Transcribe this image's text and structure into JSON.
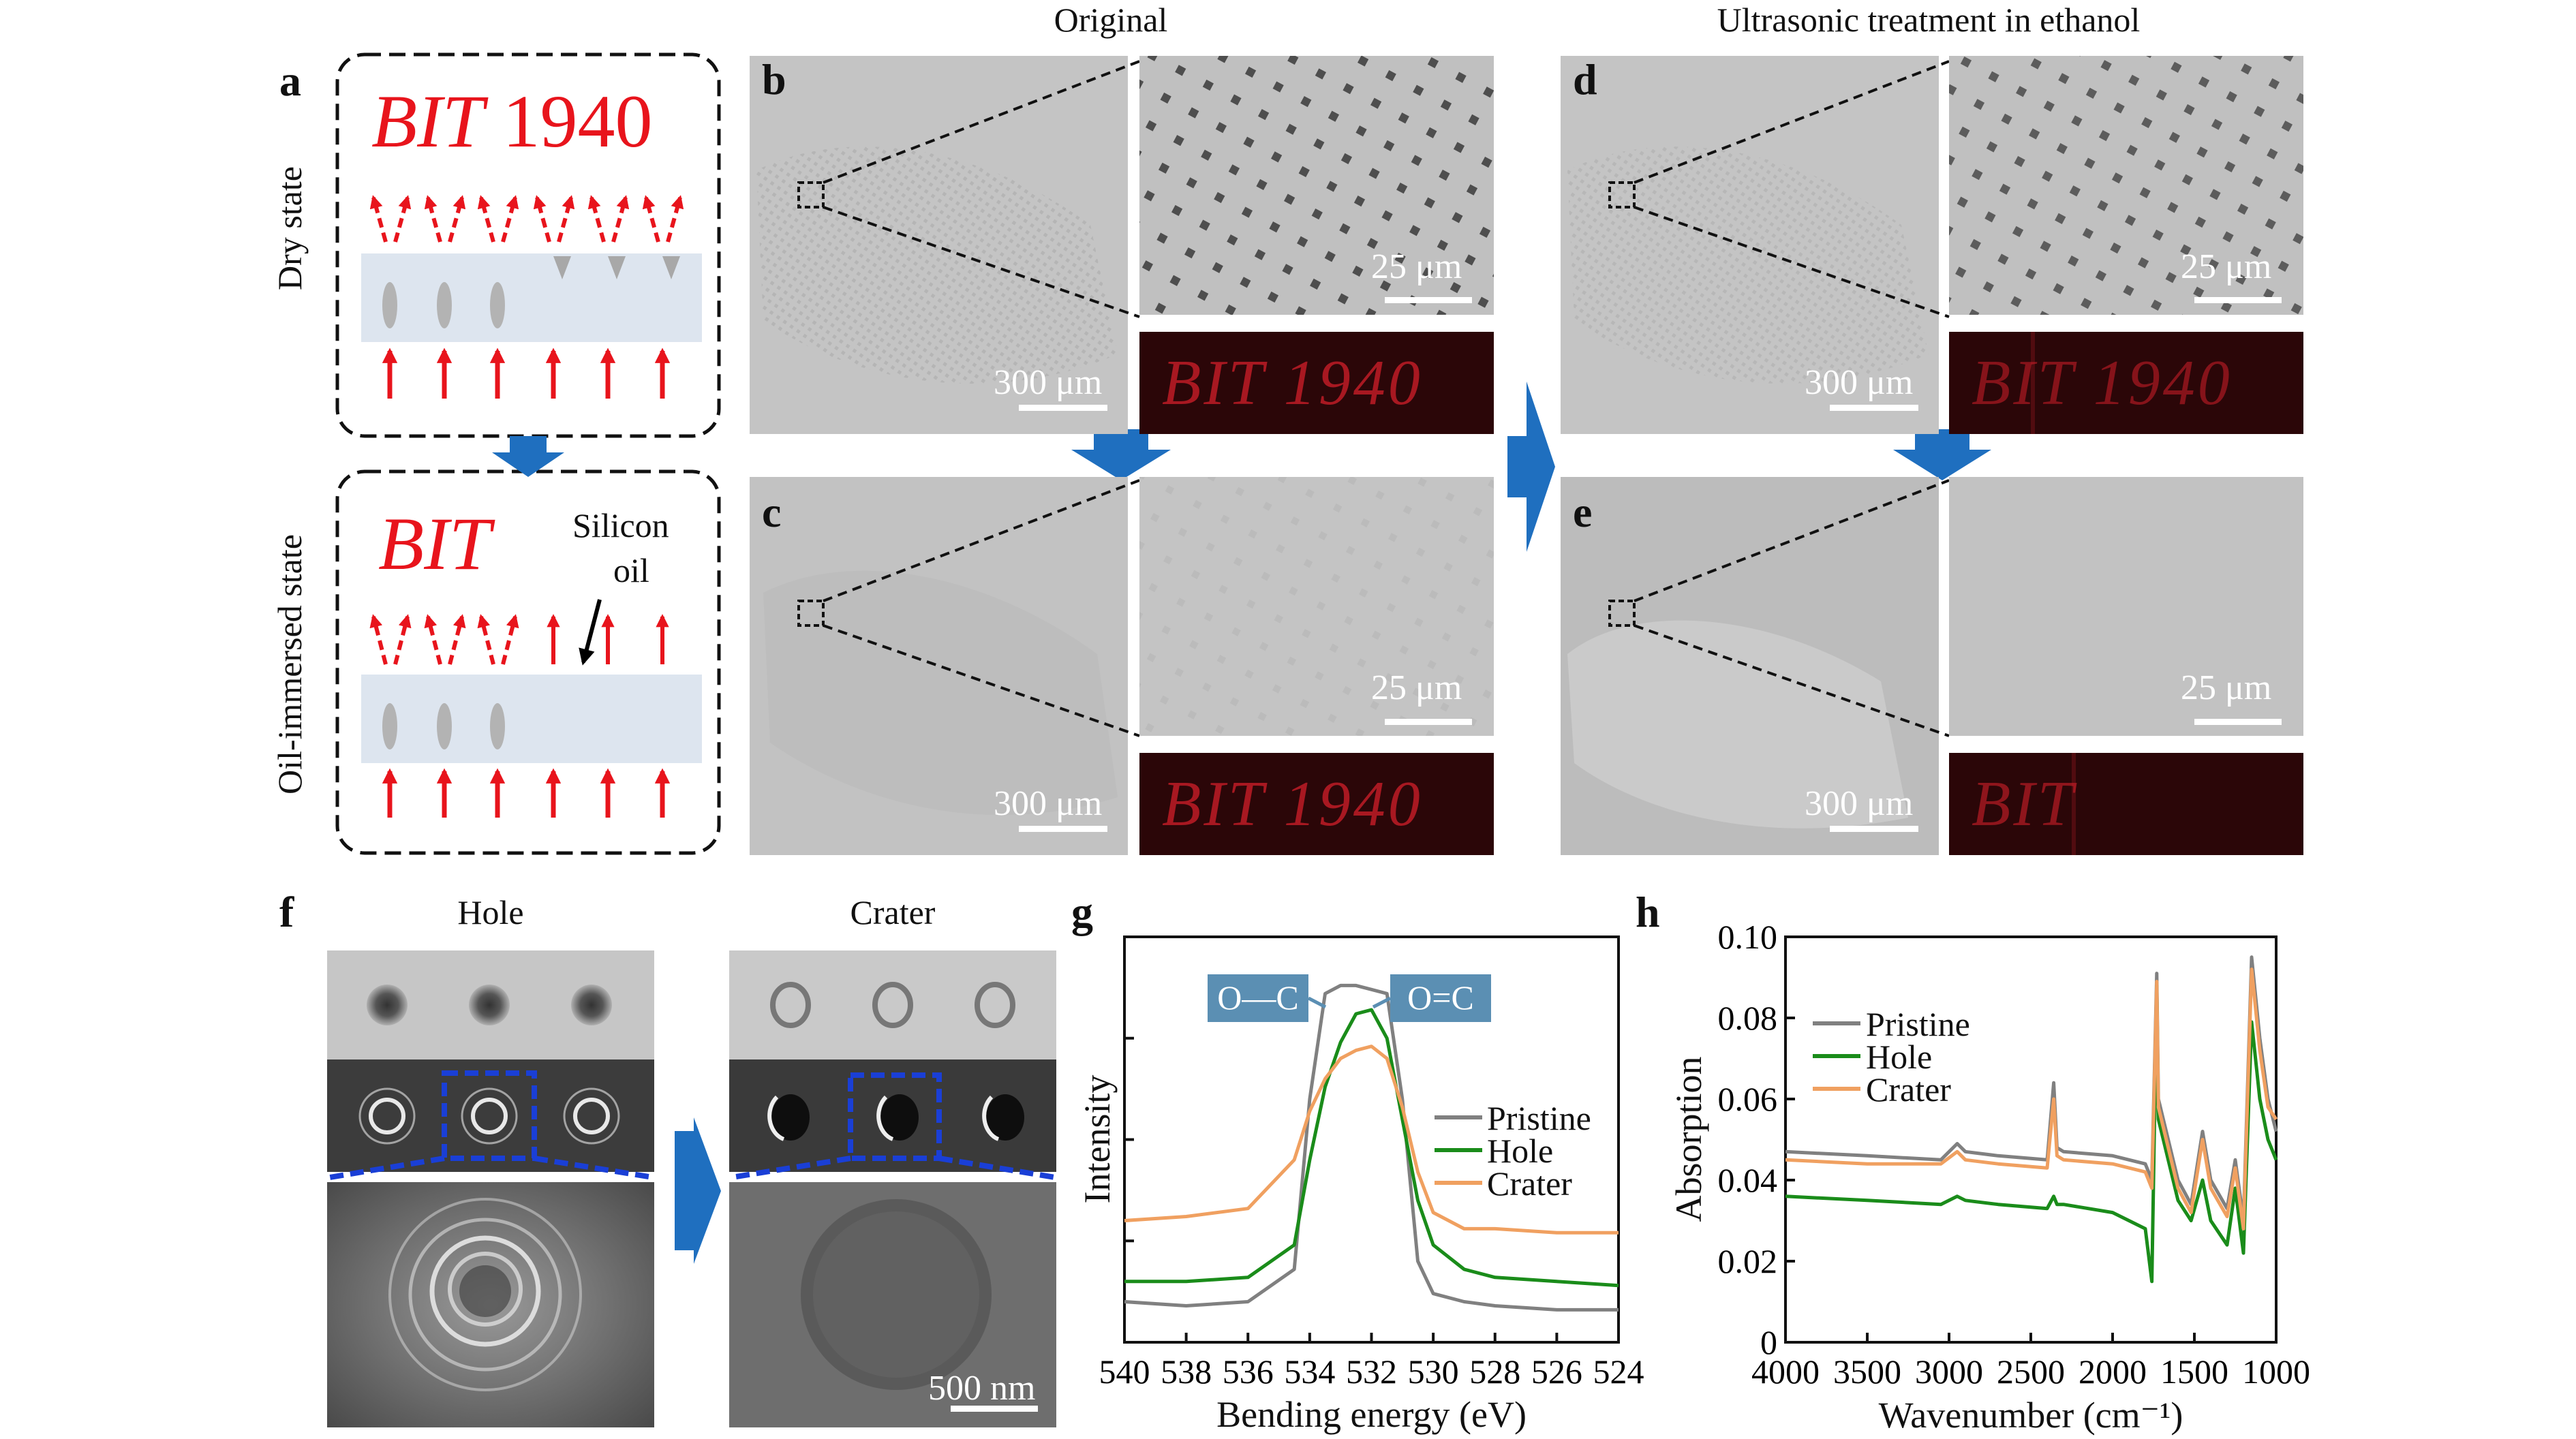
{
  "panel_labels": {
    "a": "a",
    "b": "b",
    "c": "c",
    "d": "d",
    "e": "e",
    "f": "f",
    "g": "g",
    "h": "h"
  },
  "headers": {
    "original": "Original",
    "ultrasonic": "Ultrasonic treatment in ethanol",
    "hole": "Hole",
    "crater": "Crater"
  },
  "panel_a": {
    "dry_state_label": "Dry state",
    "oil_state_label": "Oil-immersed state",
    "dry_text_italic": "BIT",
    "dry_text_number": "1940",
    "oil_text_italic": "BIT",
    "silicon_oil_label_1": "Silicon",
    "silicon_oil_label_2": "oil"
  },
  "scale_bars": {
    "large": "300 μm",
    "small": "25 μm",
    "sem": "500 nm"
  },
  "fluorescence": {
    "b": "BIT 1940",
    "c": "BIT 1940",
    "d": "BIT 1940",
    "e": "BIT"
  },
  "colors": {
    "arrow_blue": "#1f6fbf",
    "dash_blue": "#1a3fd6",
    "red": "#e8141c",
    "pristine": "#808080",
    "hole": "#1a8c1a",
    "crater": "#f0a060",
    "badge": "#5b8fb3"
  },
  "chart_data": [
    {
      "type": "line",
      "panel": "g",
      "xlabel": "Bending energy (eV)",
      "ylabel": "Intensity",
      "xlim": [
        540,
        524
      ],
      "x_ticks": [
        540,
        538,
        536,
        534,
        532,
        530,
        528,
        526,
        524
      ],
      "annotations": [
        "O—C",
        "O=C"
      ],
      "annotation_x": [
        533,
        531.6
      ],
      "legend": [
        "Pristine",
        "Hole",
        "Crater"
      ],
      "legend_position": "right",
      "x": [
        540,
        538,
        536,
        534.5,
        534,
        533.5,
        533,
        532.5,
        532,
        531.5,
        531,
        530.5,
        530,
        529,
        528,
        526,
        524
      ],
      "series": [
        {
          "name": "Pristine",
          "values": [
            0.1,
            0.09,
            0.1,
            0.18,
            0.6,
            0.86,
            0.88,
            0.88,
            0.87,
            0.86,
            0.6,
            0.2,
            0.12,
            0.1,
            0.09,
            0.08,
            0.08
          ]
        },
        {
          "name": "Hole",
          "values": [
            0.15,
            0.15,
            0.16,
            0.24,
            0.45,
            0.63,
            0.74,
            0.81,
            0.82,
            0.75,
            0.55,
            0.35,
            0.24,
            0.18,
            0.16,
            0.15,
            0.14
          ]
        },
        {
          "name": "Crater",
          "values": [
            0.3,
            0.31,
            0.33,
            0.45,
            0.57,
            0.65,
            0.7,
            0.72,
            0.73,
            0.7,
            0.58,
            0.42,
            0.32,
            0.28,
            0.28,
            0.27,
            0.27
          ]
        }
      ]
    },
    {
      "type": "line",
      "panel": "h",
      "xlabel": "Wavenumber (cm⁻¹)",
      "ylabel": "Absorption",
      "xlim": [
        4000,
        1000
      ],
      "ylim": [
        0,
        0.1
      ],
      "x_ticks": [
        4000,
        3500,
        3000,
        2500,
        2000,
        1500,
        1000
      ],
      "y_ticks": [
        0,
        0.02,
        0.04,
        0.06,
        0.08,
        0.1
      ],
      "x_tick_labels": [
        "4000",
        "3500",
        "3000",
        "2500",
        "2000",
        "1500",
        "1000"
      ],
      "y_tick_labels": [
        "0",
        "0.02",
        "0.04",
        "0.06",
        "0.08",
        "0.10"
      ],
      "legend": [
        "Pristine",
        "Hole",
        "Crater"
      ],
      "legend_position": "top-left",
      "x": [
        4000,
        3500,
        3050,
        2950,
        2900,
        2700,
        2400,
        2360,
        2340,
        2300,
        2000,
        1800,
        1760,
        1730,
        1720,
        1600,
        1520,
        1450,
        1400,
        1300,
        1250,
        1200,
        1150,
        1100,
        1050,
        1000
      ],
      "series": [
        {
          "name": "Pristine",
          "values": [
            0.047,
            0.046,
            0.045,
            0.049,
            0.047,
            0.046,
            0.045,
            0.064,
            0.048,
            0.047,
            0.046,
            0.044,
            0.04,
            0.091,
            0.06,
            0.04,
            0.034,
            0.052,
            0.04,
            0.033,
            0.045,
            0.03,
            0.095,
            0.075,
            0.06,
            0.052
          ]
        },
        {
          "name": "Hole",
          "values": [
            0.036,
            0.035,
            0.034,
            0.036,
            0.035,
            0.034,
            0.033,
            0.036,
            0.034,
            0.034,
            0.032,
            0.028,
            0.015,
            0.088,
            0.055,
            0.035,
            0.03,
            0.04,
            0.03,
            0.024,
            0.038,
            0.022,
            0.079,
            0.06,
            0.05,
            0.045
          ]
        },
        {
          "name": "Crater",
          "values": [
            0.045,
            0.044,
            0.044,
            0.047,
            0.045,
            0.044,
            0.043,
            0.06,
            0.046,
            0.045,
            0.044,
            0.042,
            0.038,
            0.089,
            0.058,
            0.038,
            0.032,
            0.05,
            0.038,
            0.031,
            0.043,
            0.028,
            0.092,
            0.072,
            0.058,
            0.055
          ]
        }
      ]
    }
  ]
}
